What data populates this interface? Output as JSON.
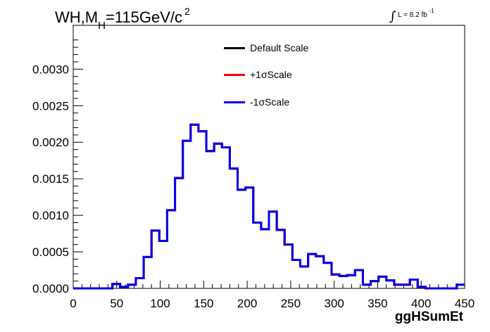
{
  "title": {
    "prefix": "WH,M",
    "subscript": "H",
    "suffix": "=115GeV/c",
    "superscript": "2"
  },
  "luminosity": {
    "integral_symbol": "∫",
    "text": "L = 8.2 fb",
    "superscript": "-1"
  },
  "colors": {
    "default": "#000000",
    "plus": "#ff0000",
    "minus": "#0000ee",
    "axis": "#000000",
    "frame": "#000000"
  },
  "chart_data": {
    "type": "line",
    "title": "WH,MH=115GeV/c2",
    "xlabel": "ggHSumEt",
    "ylabel": "",
    "xlim": [
      0,
      450
    ],
    "ylim": [
      0,
      0.0036
    ],
    "xticks": [
      "0",
      "50",
      "100",
      "150",
      "200",
      "250",
      "300",
      "350",
      "400",
      "450"
    ],
    "yticks": [
      "0.0000",
      "0.0005",
      "0.0010",
      "0.0015",
      "0.0020",
      "0.0025",
      "0.0030"
    ],
    "bin_width": 9,
    "x": [
      4.5,
      13.5,
      22.5,
      31.5,
      40.5,
      49.5,
      58.5,
      67.5,
      76.5,
      85.5,
      94.5,
      103.5,
      112.5,
      121.5,
      130.5,
      139.5,
      148.5,
      157.5,
      166.5,
      175.5,
      184.5,
      193.5,
      202.5,
      211.5,
      220.5,
      229.5,
      238.5,
      247.5,
      256.5,
      265.5,
      274.5,
      283.5,
      292.5,
      301.5,
      310.5,
      319.5,
      328.5,
      337.5,
      346.5,
      355.5,
      364.5,
      373.5,
      382.5,
      391.5,
      400.5,
      409.5,
      418.5,
      427.5,
      436.5,
      445.5
    ],
    "legend_position": "top-center",
    "series": [
      {
        "name": "Default Scale",
        "color": "#000000",
        "values": [
          0,
          0,
          0,
          0,
          0,
          6e-05,
          2e-05,
          5e-05,
          0.00014,
          0.00043,
          0.00079,
          0.00065,
          0.00107,
          0.00151,
          0.00202,
          0.00224,
          0.00215,
          0.00188,
          0.00198,
          0.00193,
          0.00164,
          0.00135,
          0.00138,
          0.0009,
          0.00081,
          0.00105,
          0.0008,
          0.0006,
          0.00039,
          0.0003,
          0.00047,
          0.00044,
          0.00035,
          0.00019,
          0.00017,
          0.00018,
          0.00025,
          5e-05,
          0.0001,
          0.00016,
          0.00011,
          5e-05,
          5e-05,
          0.00012,
          2e-05,
          0,
          0,
          0,
          0,
          5e-05
        ]
      },
      {
        "name": "+1σScale",
        "color": "#ff0000",
        "values": [
          0,
          0,
          0,
          0,
          0,
          6e-05,
          2e-05,
          5e-05,
          0.00014,
          0.00043,
          0.00079,
          0.00065,
          0.00107,
          0.00151,
          0.00202,
          0.00224,
          0.00215,
          0.00188,
          0.00198,
          0.00193,
          0.00164,
          0.00135,
          0.00138,
          0.0009,
          0.00081,
          0.00105,
          0.0008,
          0.0006,
          0.00039,
          0.0003,
          0.00047,
          0.00044,
          0.00035,
          0.00019,
          0.00017,
          0.00018,
          0.00025,
          5e-05,
          0.0001,
          0.00016,
          0.00011,
          5e-05,
          5e-05,
          0.00012,
          2e-05,
          0,
          0,
          0,
          0,
          5e-05
        ]
      },
      {
        "name": "-1σScale",
        "color": "#0000ee",
        "values": [
          0,
          0,
          0,
          0,
          0,
          6e-05,
          2e-05,
          5e-05,
          0.00014,
          0.00043,
          0.00079,
          0.00065,
          0.00107,
          0.00151,
          0.00202,
          0.00224,
          0.00215,
          0.00188,
          0.00198,
          0.00193,
          0.00164,
          0.00135,
          0.00138,
          0.0009,
          0.00081,
          0.00105,
          0.0008,
          0.0006,
          0.00039,
          0.0003,
          0.00047,
          0.00044,
          0.00035,
          0.00019,
          0.00017,
          0.00018,
          0.00025,
          5e-05,
          0.0001,
          0.00016,
          0.00011,
          5e-05,
          5e-05,
          0.00012,
          2e-05,
          0,
          0,
          0,
          0,
          5e-05
        ]
      }
    ]
  }
}
